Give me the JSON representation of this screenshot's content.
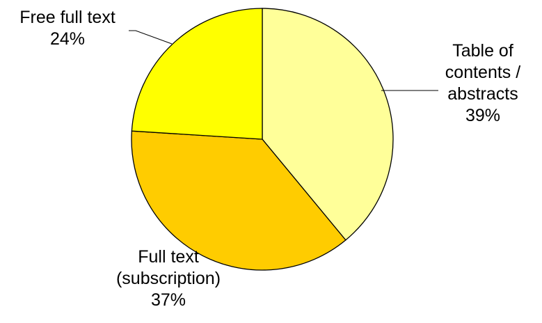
{
  "chart_data": {
    "type": "pie",
    "title": "",
    "slices": [
      {
        "label_lines": [
          "Table of",
          "contents /",
          "abstracts"
        ],
        "percent_label": "39%",
        "value": 39,
        "color": "#FFFF99"
      },
      {
        "label_lines": [
          "Full text",
          "(subscription)"
        ],
        "percent_label": "37%",
        "value": 37,
        "color": "#FFCC00"
      },
      {
        "label_lines": [
          "Free full text"
        ],
        "percent_label": "24%",
        "value": 24,
        "color": "#FFFF00"
      }
    ],
    "start": "12 o'clock",
    "direction": "clockwise",
    "legend": "none"
  }
}
